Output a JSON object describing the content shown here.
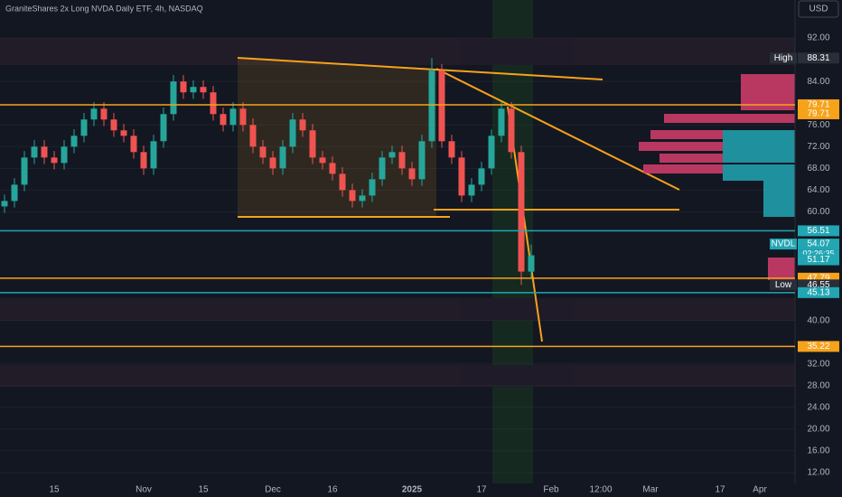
{
  "title": "GraniteShares 2x Long NVDA Daily ETF, 4h, NASDAQ",
  "currency": "USD",
  "countdown": "02:26:35",
  "chart_data": {
    "type": "candlestick",
    "up_color": "#26a69a",
    "down_color": "#ef5350",
    "categories": [
      null,
      null,
      null,
      null,
      null,
      "15",
      null,
      null,
      null,
      null,
      null,
      null,
      null,
      null,
      "Nov",
      null,
      null,
      null,
      null,
      null,
      "15",
      null,
      null,
      null,
      null,
      null,
      null,
      "Dec",
      null,
      null,
      null,
      null,
      null,
      "16",
      null,
      null,
      null,
      null,
      null,
      null,
      null,
      "2025",
      null,
      null,
      null,
      null,
      null,
      null,
      "17",
      null,
      null,
      null,
      null,
      null,
      null,
      "Feb",
      null,
      null,
      null,
      null,
      "12:00",
      null,
      null,
      null,
      null,
      "Mar",
      null,
      null,
      null,
      null,
      null,
      null,
      "17",
      null,
      null,
      null,
      "Apr",
      null,
      null,
      null
    ],
    "open": [
      61,
      62,
      65,
      70,
      72,
      70,
      69,
      72,
      74,
      77,
      79,
      77,
      75,
      74,
      71,
      68,
      73,
      78,
      84,
      82,
      83,
      82,
      78,
      76,
      79,
      76,
      72,
      70,
      68,
      72,
      77,
      75,
      70,
      69,
      67,
      64,
      62,
      63,
      66,
      70,
      71,
      68,
      66,
      73,
      86,
      73,
      70,
      63,
      65,
      68,
      74,
      79,
      71,
      49,
      null,
      null,
      null,
      null,
      null,
      null,
      null,
      null,
      null,
      null,
      null,
      null,
      null,
      null,
      null,
      null,
      null,
      null,
      null,
      null,
      null,
      null,
      null,
      null,
      null,
      null
    ],
    "high": [
      63.2,
      66.2,
      71.2,
      73.2,
      73.2,
      71.2,
      73.2,
      75.2,
      78.2,
      80.2,
      80.2,
      78.2,
      76.2,
      75.2,
      72.2,
      74.2,
      79.2,
      85.2,
      85.2,
      84.2,
      84.2,
      83.2,
      79.2,
      80.2,
      80.2,
      77.2,
      73.2,
      71.2,
      73.2,
      78.2,
      78.2,
      76.2,
      71.2,
      70.2,
      68.2,
      65.2,
      64.2,
      67.2,
      71.2,
      72.2,
      72.2,
      69.2,
      74.2,
      88.31,
      87.2,
      74.2,
      71.2,
      66.2,
      69.2,
      75.2,
      80.2,
      80.2,
      72.2,
      54,
      null,
      null,
      null,
      null,
      null,
      null,
      null,
      null,
      null,
      null,
      null,
      null,
      null,
      null,
      null,
      null,
      null,
      null,
      null,
      null,
      null,
      null,
      null,
      null,
      null,
      null
    ],
    "low": [
      59.8,
      60.8,
      63.8,
      68.8,
      68.8,
      67.8,
      67.8,
      70.8,
      72.8,
      75.8,
      75.8,
      73.8,
      72.8,
      69.8,
      66.8,
      66.8,
      71.8,
      76.8,
      80.8,
      80.8,
      80.8,
      76.8,
      74.8,
      74.8,
      74.8,
      70.8,
      68.8,
      66.8,
      66.8,
      70.8,
      73.8,
      68.8,
      67.8,
      65.8,
      62.8,
      60.8,
      60.8,
      61.8,
      64.8,
      68.8,
      66.8,
      64.8,
      64.8,
      71.8,
      71.8,
      68.8,
      61.8,
      61.8,
      63.8,
      66.8,
      72.8,
      69.8,
      46.55,
      47.8,
      null,
      null,
      null,
      null,
      null,
      null,
      null,
      null,
      null,
      null,
      null,
      null,
      null,
      null,
      null,
      null,
      null,
      null,
      null,
      null,
      null,
      null,
      null,
      null,
      null,
      null
    ],
    "close": [
      62,
      65,
      70,
      72,
      70,
      69,
      72,
      74,
      77,
      79,
      77,
      75,
      74,
      71,
      68,
      73,
      78,
      84,
      82,
      83,
      82,
      78,
      76,
      79,
      76,
      72,
      70,
      68,
      72,
      77,
      75,
      70,
      69,
      67,
      64,
      62,
      63,
      66,
      70,
      71,
      68,
      66,
      73,
      86,
      73,
      70,
      63,
      65,
      68,
      74,
      79,
      71,
      49,
      52,
      null,
      null,
      null,
      null,
      null,
      null,
      null,
      null,
      null,
      null,
      null,
      null,
      null,
      null,
      null,
      null,
      null,
      null,
      null,
      null,
      null,
      null,
      null,
      null,
      null,
      null
    ],
    "ylim": [
      10,
      99
    ],
    "yticks": [
      {
        "value": 12,
        "label": "12.00"
      },
      {
        "value": 16,
        "label": "16.00"
      },
      {
        "value": 20,
        "label": "20.00"
      },
      {
        "value": 24,
        "label": "24.00"
      },
      {
        "value": 28,
        "label": "28.00"
      },
      {
        "value": 32,
        "label": "32.00"
      },
      {
        "value": 40,
        "label": "40.00"
      },
      {
        "value": 60,
        "label": "60.00"
      },
      {
        "value": 64,
        "label": "64.00"
      },
      {
        "value": 68,
        "label": "68.00"
      },
      {
        "value": 72,
        "label": "72.00"
      },
      {
        "value": 76,
        "label": "76.00"
      },
      {
        "value": 84,
        "label": "84.00"
      },
      {
        "value": 92,
        "label": "92.00"
      }
    ],
    "grid": true,
    "levels": [
      {
        "value": 88.31,
        "color": "#2a2e39",
        "tag": "High",
        "line": false
      },
      {
        "value": 79.71,
        "color": "#f7a21b",
        "line": true
      },
      {
        "value": 79.71,
        "color": "#f7a21b",
        "line": false
      },
      {
        "value": 56.51,
        "color": "#22a6b3",
        "line": true
      },
      {
        "value": 54.07,
        "color": "#22a6b3",
        "tag": "NVDL",
        "line": false
      },
      {
        "value": 51.17,
        "color": "#22a6b3",
        "line": false
      },
      {
        "value": 47.79,
        "color": "#f7a21b",
        "line": true
      },
      {
        "value": 46.55,
        "color": "#2a2e39",
        "tag": "Low",
        "line": false
      },
      {
        "value": 45.13,
        "color": "#22a6b3",
        "line": true
      },
      {
        "value": 35.22,
        "color": "#f7a21b",
        "line": true
      }
    ]
  }
}
